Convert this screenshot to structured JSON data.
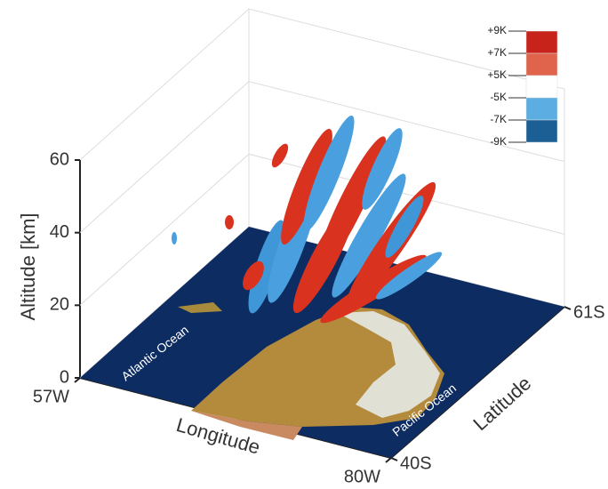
{
  "chart_data": {
    "type": "isosurface3d",
    "zlabel": "Altitude [km]",
    "xlabel": "Longitude",
    "ylabel": "Latitude",
    "zlim": [
      0,
      60
    ],
    "zticks": [
      0,
      20,
      40,
      60
    ],
    "xlim": [
      -57,
      -80
    ],
    "xticks": [
      {
        "value": -57,
        "label": "57W"
      },
      {
        "value": -80,
        "label": "80W"
      }
    ],
    "ylim": [
      -40,
      -61
    ],
    "yticks": [
      {
        "value": -40,
        "label": "40S"
      },
      {
        "value": -61,
        "label": "61S"
      }
    ],
    "annotations": [
      "Atlantic Ocean",
      "Pacific Ocean"
    ],
    "colorbar": {
      "ticks": [
        {
          "value": 9,
          "label": "+9K"
        },
        {
          "value": 7,
          "label": "+7K"
        },
        {
          "value": 5,
          "label": "+5K"
        },
        {
          "value": -5,
          "label": "-5K"
        },
        {
          "value": -7,
          "label": "-7K"
        },
        {
          "value": -9,
          "label": "-9K"
        }
      ],
      "colors": [
        "#c8231a",
        "#e0644c",
        "#ffffff",
        "#5cade2",
        "#1b5f94"
      ]
    }
  }
}
